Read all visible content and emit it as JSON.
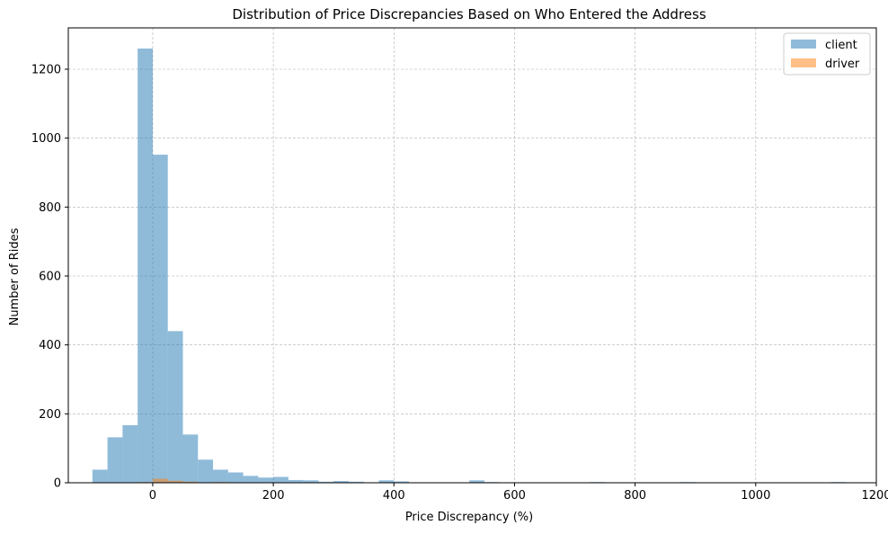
{
  "chart_data": {
    "type": "bar",
    "title": "Distribution of Price Discrepancies Based on Who Entered the Address",
    "xlabel": "Price Discrepancy (%)",
    "ylabel": "Number of Rides",
    "xlim": [
      -140,
      1200
    ],
    "ylim": [
      0,
      1320
    ],
    "xticks": [
      0,
      200,
      400,
      600,
      800,
      1000,
      1200
    ],
    "yticks": [
      0,
      200,
      400,
      600,
      800,
      1000,
      1200
    ],
    "grid": true,
    "legend_position": "top-right",
    "bin_width": 25,
    "series": [
      {
        "name": "client",
        "color": "#1f77b4",
        "opacity": 0.5,
        "bins": [
          {
            "x0": -100,
            "count": 38
          },
          {
            "x0": -75,
            "count": 132
          },
          {
            "x0": -50,
            "count": 167
          },
          {
            "x0": -25,
            "count": 1260
          },
          {
            "x0": 0,
            "count": 952
          },
          {
            "x0": 25,
            "count": 440
          },
          {
            "x0": 50,
            "count": 140
          },
          {
            "x0": 75,
            "count": 67
          },
          {
            "x0": 100,
            "count": 38
          },
          {
            "x0": 125,
            "count": 30
          },
          {
            "x0": 150,
            "count": 20
          },
          {
            "x0": 175,
            "count": 15
          },
          {
            "x0": 200,
            "count": 17
          },
          {
            "x0": 225,
            "count": 8
          },
          {
            "x0": 250,
            "count": 7
          },
          {
            "x0": 275,
            "count": 3
          },
          {
            "x0": 300,
            "count": 5
          },
          {
            "x0": 325,
            "count": 3
          },
          {
            "x0": 375,
            "count": 7
          },
          {
            "x0": 400,
            "count": 4
          },
          {
            "x0": 525,
            "count": 7
          },
          {
            "x0": 550,
            "count": 2
          },
          {
            "x0": 725,
            "count": 2
          },
          {
            "x0": 875,
            "count": 2
          },
          {
            "x0": 1125,
            "count": 2
          }
        ]
      },
      {
        "name": "driver",
        "color": "#ff7f0e",
        "opacity": 0.5,
        "bins": [
          {
            "x0": -25,
            "count": 2
          },
          {
            "x0": 0,
            "count": 12
          },
          {
            "x0": 25,
            "count": 6
          },
          {
            "x0": 50,
            "count": 3
          },
          {
            "x0": 100,
            "count": 2
          }
        ]
      }
    ]
  }
}
